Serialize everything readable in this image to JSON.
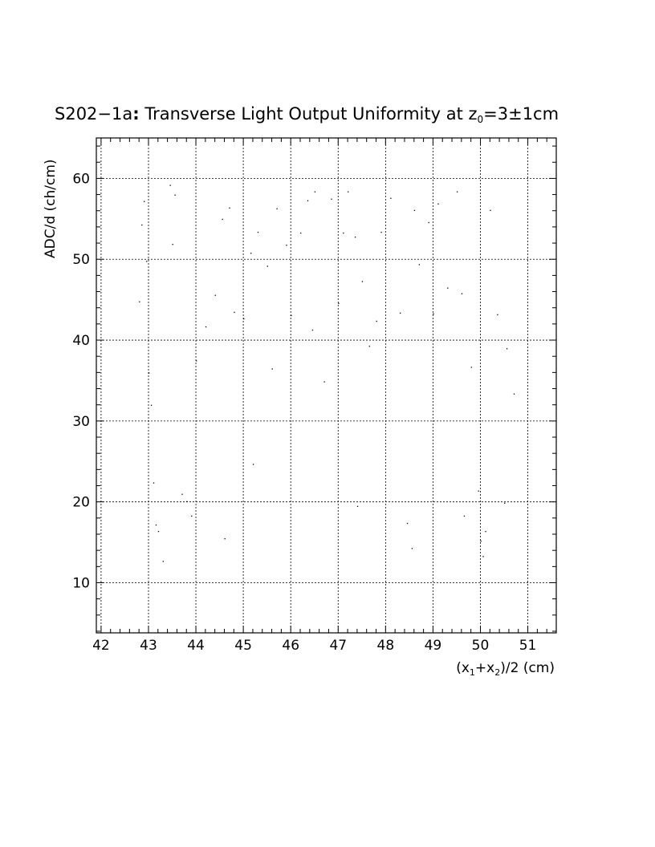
{
  "chart_data": {
    "type": "scatter",
    "title_prefix": "S202−1a",
    "title_colon": ":",
    "title_main": " Transverse Light Output Uniformity at z",
    "title_sub": "0",
    "title_suffix": "=3±1cm",
    "ylabel": "ADC/d (ch/cm)",
    "xlabel_parts": [
      "(x",
      "1",
      "+x",
      "2",
      ")/2 (cm)"
    ],
    "xlim": [
      41.9,
      51.6
    ],
    "ylim": [
      3.8,
      65
    ],
    "x_ticks": [
      42,
      43,
      44,
      45,
      46,
      47,
      48,
      49,
      50,
      51
    ],
    "x_tick_labels": [
      "42",
      "43",
      "44",
      "45",
      "46",
      "47",
      "48",
      "49",
      "50",
      "51"
    ],
    "y_ticks": [
      10,
      20,
      30,
      40,
      50,
      60
    ],
    "y_tick_labels": [
      "10",
      "20",
      "30",
      "40",
      "50",
      "60"
    ],
    "grid": true,
    "marker_color": "#000000",
    "series": [
      {
        "points": [
          [
            42.8,
            44.8
          ],
          [
            42.85,
            54.3
          ],
          [
            42.9,
            57.2
          ],
          [
            42.95,
            49.8
          ],
          [
            43.0,
            36.0
          ],
          [
            43.05,
            32.0
          ],
          [
            43.1,
            22.4
          ],
          [
            43.15,
            17.2
          ],
          [
            43.2,
            16.4
          ],
          [
            43.3,
            12.7
          ],
          [
            43.45,
            59.2
          ],
          [
            43.5,
            51.9
          ],
          [
            43.55,
            58.0
          ],
          [
            43.7,
            21.0
          ],
          [
            43.8,
            20.1
          ],
          [
            43.9,
            18.3
          ],
          [
            44.0,
            37.5
          ],
          [
            44.2,
            41.7
          ],
          [
            44.4,
            45.6
          ],
          [
            44.55,
            55.0
          ],
          [
            44.6,
            15.5
          ],
          [
            44.7,
            56.4
          ],
          [
            44.8,
            43.5
          ],
          [
            45.0,
            42.7
          ],
          [
            45.15,
            50.8
          ],
          [
            45.2,
            24.7
          ],
          [
            45.3,
            53.4
          ],
          [
            45.5,
            49.2
          ],
          [
            45.6,
            36.5
          ],
          [
            45.7,
            56.3
          ],
          [
            45.9,
            51.8
          ],
          [
            46.0,
            43.1
          ],
          [
            46.2,
            53.3
          ],
          [
            46.35,
            57.3
          ],
          [
            46.45,
            41.3
          ],
          [
            46.5,
            58.4
          ],
          [
            46.7,
            34.9
          ],
          [
            46.85,
            57.5
          ],
          [
            47.0,
            44.6
          ],
          [
            47.1,
            53.3
          ],
          [
            47.2,
            58.4
          ],
          [
            47.35,
            52.8
          ],
          [
            47.4,
            19.5
          ],
          [
            47.5,
            47.3
          ],
          [
            47.65,
            39.3
          ],
          [
            47.8,
            42.4
          ],
          [
            47.9,
            53.4
          ],
          [
            48.1,
            57.6
          ],
          [
            48.3,
            43.4
          ],
          [
            48.45,
            17.4
          ],
          [
            48.55,
            14.3
          ],
          [
            48.6,
            56.1
          ],
          [
            48.7,
            49.4
          ],
          [
            48.9,
            54.6
          ],
          [
            49.0,
            43.3
          ],
          [
            49.1,
            56.9
          ],
          [
            49.3,
            46.5
          ],
          [
            49.5,
            58.4
          ],
          [
            49.6,
            45.8
          ],
          [
            49.65,
            18.3
          ],
          [
            49.8,
            36.7
          ],
          [
            49.95,
            21.4
          ],
          [
            50.0,
            15.2
          ],
          [
            50.05,
            13.3
          ],
          [
            50.1,
            16.4
          ],
          [
            50.2,
            56.1
          ],
          [
            50.35,
            43.2
          ],
          [
            50.5,
            19.9
          ],
          [
            50.55,
            39.0
          ],
          [
            50.7,
            33.4
          ]
        ]
      }
    ]
  }
}
